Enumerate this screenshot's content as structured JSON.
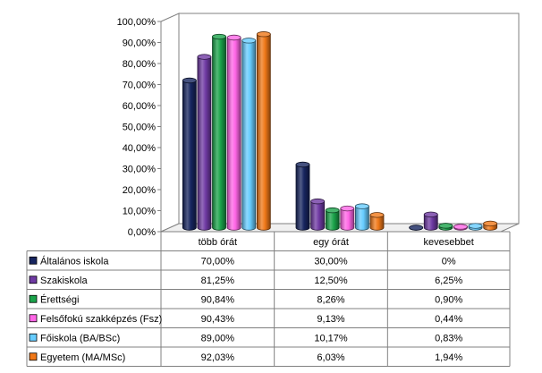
{
  "chart_data": {
    "type": "bar",
    "categories": [
      "több órát",
      "egy órát",
      "kevesebbet"
    ],
    "series": [
      {
        "name": "Általános iskola",
        "color": "#17255f",
        "values": [
          70.0,
          30.0,
          0
        ],
        "labels": [
          "70,00%",
          "30,00%",
          "0%"
        ]
      },
      {
        "name": "Szakiskola",
        "color": "#6f3aa3",
        "values": [
          81.25,
          12.5,
          6.25
        ],
        "labels": [
          "81,25%",
          "12,50%",
          "6,25%"
        ]
      },
      {
        "name": "Érettségi",
        "color": "#1aa34a",
        "values": [
          90.84,
          8.26,
          0.9
        ],
        "labels": [
          "90,84%",
          "8,26%",
          "0,90%"
        ]
      },
      {
        "name": "Felsőfokú szakképzés (Fsz)",
        "color": "#ff66e6",
        "values": [
          90.43,
          9.13,
          0.44
        ],
        "labels": [
          "90,43%",
          "9,13%",
          "0,44%"
        ]
      },
      {
        "name": "Főiskola (BA/BSc)",
        "color": "#66ccff",
        "values": [
          89.0,
          10.17,
          0.83
        ],
        "labels": [
          "89,00%",
          "10,17%",
          "0,83%"
        ]
      },
      {
        "name": "Egyetem (MA/MSc)",
        "color": "#f07818",
        "values": [
          92.03,
          6.03,
          1.94
        ],
        "labels": [
          "92,03%",
          "6,03%",
          "1,94%"
        ]
      }
    ],
    "yticks": [
      "0,00%",
      "10,00%",
      "20,00%",
      "30,00%",
      "40,00%",
      "50,00%",
      "60,00%",
      "70,00%",
      "80,00%",
      "90,00%",
      "100,00%"
    ],
    "ylim": [
      0,
      100
    ],
    "grid": false,
    "legend": "table-below"
  }
}
